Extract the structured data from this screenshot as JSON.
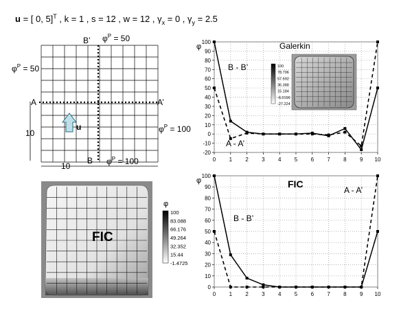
{
  "header": {
    "parts": [
      {
        "t": "u",
        "b": true,
        "sup": false,
        "sub": false
      },
      {
        "t": " = [ 0, 5]",
        "b": false,
        "sup": false,
        "sub": false
      },
      {
        "t": "T",
        "b": false,
        "sup": true,
        "sub": false
      },
      {
        "t": "  , k = 1 , s = 12 , w = 12 , ",
        "b": false,
        "sup": false,
        "sub": false
      },
      {
        "t": "γ",
        "b": false,
        "sup": false,
        "sub": false
      },
      {
        "t": "x",
        "b": false,
        "sup": false,
        "sub": true
      },
      {
        "t": " = 0 , ",
        "b": false,
        "sup": false,
        "sub": false
      },
      {
        "t": "γ",
        "b": false,
        "sup": false,
        "sub": false
      },
      {
        "t": "y",
        "b": false,
        "sup": false,
        "sub": true
      },
      {
        "t": " = 2.5",
        "b": false,
        "sup": false,
        "sub": false
      }
    ]
  },
  "domain_panel": {
    "phi_label": "φ",
    "phi_sup": "P",
    "top_value": " = 50",
    "left_value": " = 50",
    "right_value": " = 100",
    "bottom_value": " = 100",
    "b_prime": "B’",
    "b": "B",
    "a": "A",
    "a_prime": "A’",
    "velocity": "u",
    "dim_left": "10",
    "dim_bottom": "10",
    "grid_cells": 10
  },
  "fic_surface": {
    "label": "FIC",
    "legend_title": "φ",
    "legend_values": [
      "100",
      "83.088",
      "66.176",
      "49.264",
      "32.352",
      "15.44",
      "-1.4725"
    ]
  },
  "galerkin_inset": {
    "label": "Galerkin",
    "legend_values": [
      "100",
      "78.796",
      "57.592",
      "36.388",
      "15.184",
      "-6.0196",
      "-27.224"
    ]
  },
  "chart_data": [
    {
      "type": "line",
      "label": "Galerkin",
      "ylabel": "φ",
      "x": [
        0,
        1,
        2,
        3,
        4,
        5,
        6,
        7,
        8,
        9,
        10
      ],
      "xlim": [
        0,
        10
      ],
      "ylim": [
        -20,
        100
      ],
      "yticks": [
        -20,
        -10,
        0,
        10,
        20,
        30,
        40,
        50,
        60,
        70,
        80,
        90,
        100
      ],
      "grid": true,
      "series": [
        {
          "name": "B - B’",
          "style": "solid",
          "values": [
            100,
            14,
            2,
            0,
            0,
            0,
            1,
            -2,
            6,
            -17,
            50
          ]
        },
        {
          "name": "A - A’",
          "style": "dashed",
          "values": [
            50,
            -5,
            1,
            0,
            0,
            0,
            0,
            -1,
            2,
            -13,
            100
          ]
        }
      ]
    },
    {
      "type": "line",
      "label": "FIC",
      "ylabel": "φ",
      "x": [
        0,
        1,
        2,
        3,
        4,
        5,
        6,
        7,
        8,
        9,
        10
      ],
      "xlim": [
        0,
        10
      ],
      "ylim": [
        0,
        100
      ],
      "yticks": [
        0,
        10,
        20,
        30,
        40,
        50,
        60,
        70,
        80,
        90,
        100
      ],
      "grid": true,
      "series": [
        {
          "name": "B - B’",
          "style": "solid",
          "values": [
            100,
            29,
            8,
            2,
            0,
            0,
            0,
            0,
            0,
            0,
            50
          ]
        },
        {
          "name": "A - A’",
          "style": "dashed",
          "values": [
            50,
            0,
            0,
            0,
            0,
            0,
            0,
            0,
            0,
            0,
            100
          ]
        }
      ]
    }
  ]
}
